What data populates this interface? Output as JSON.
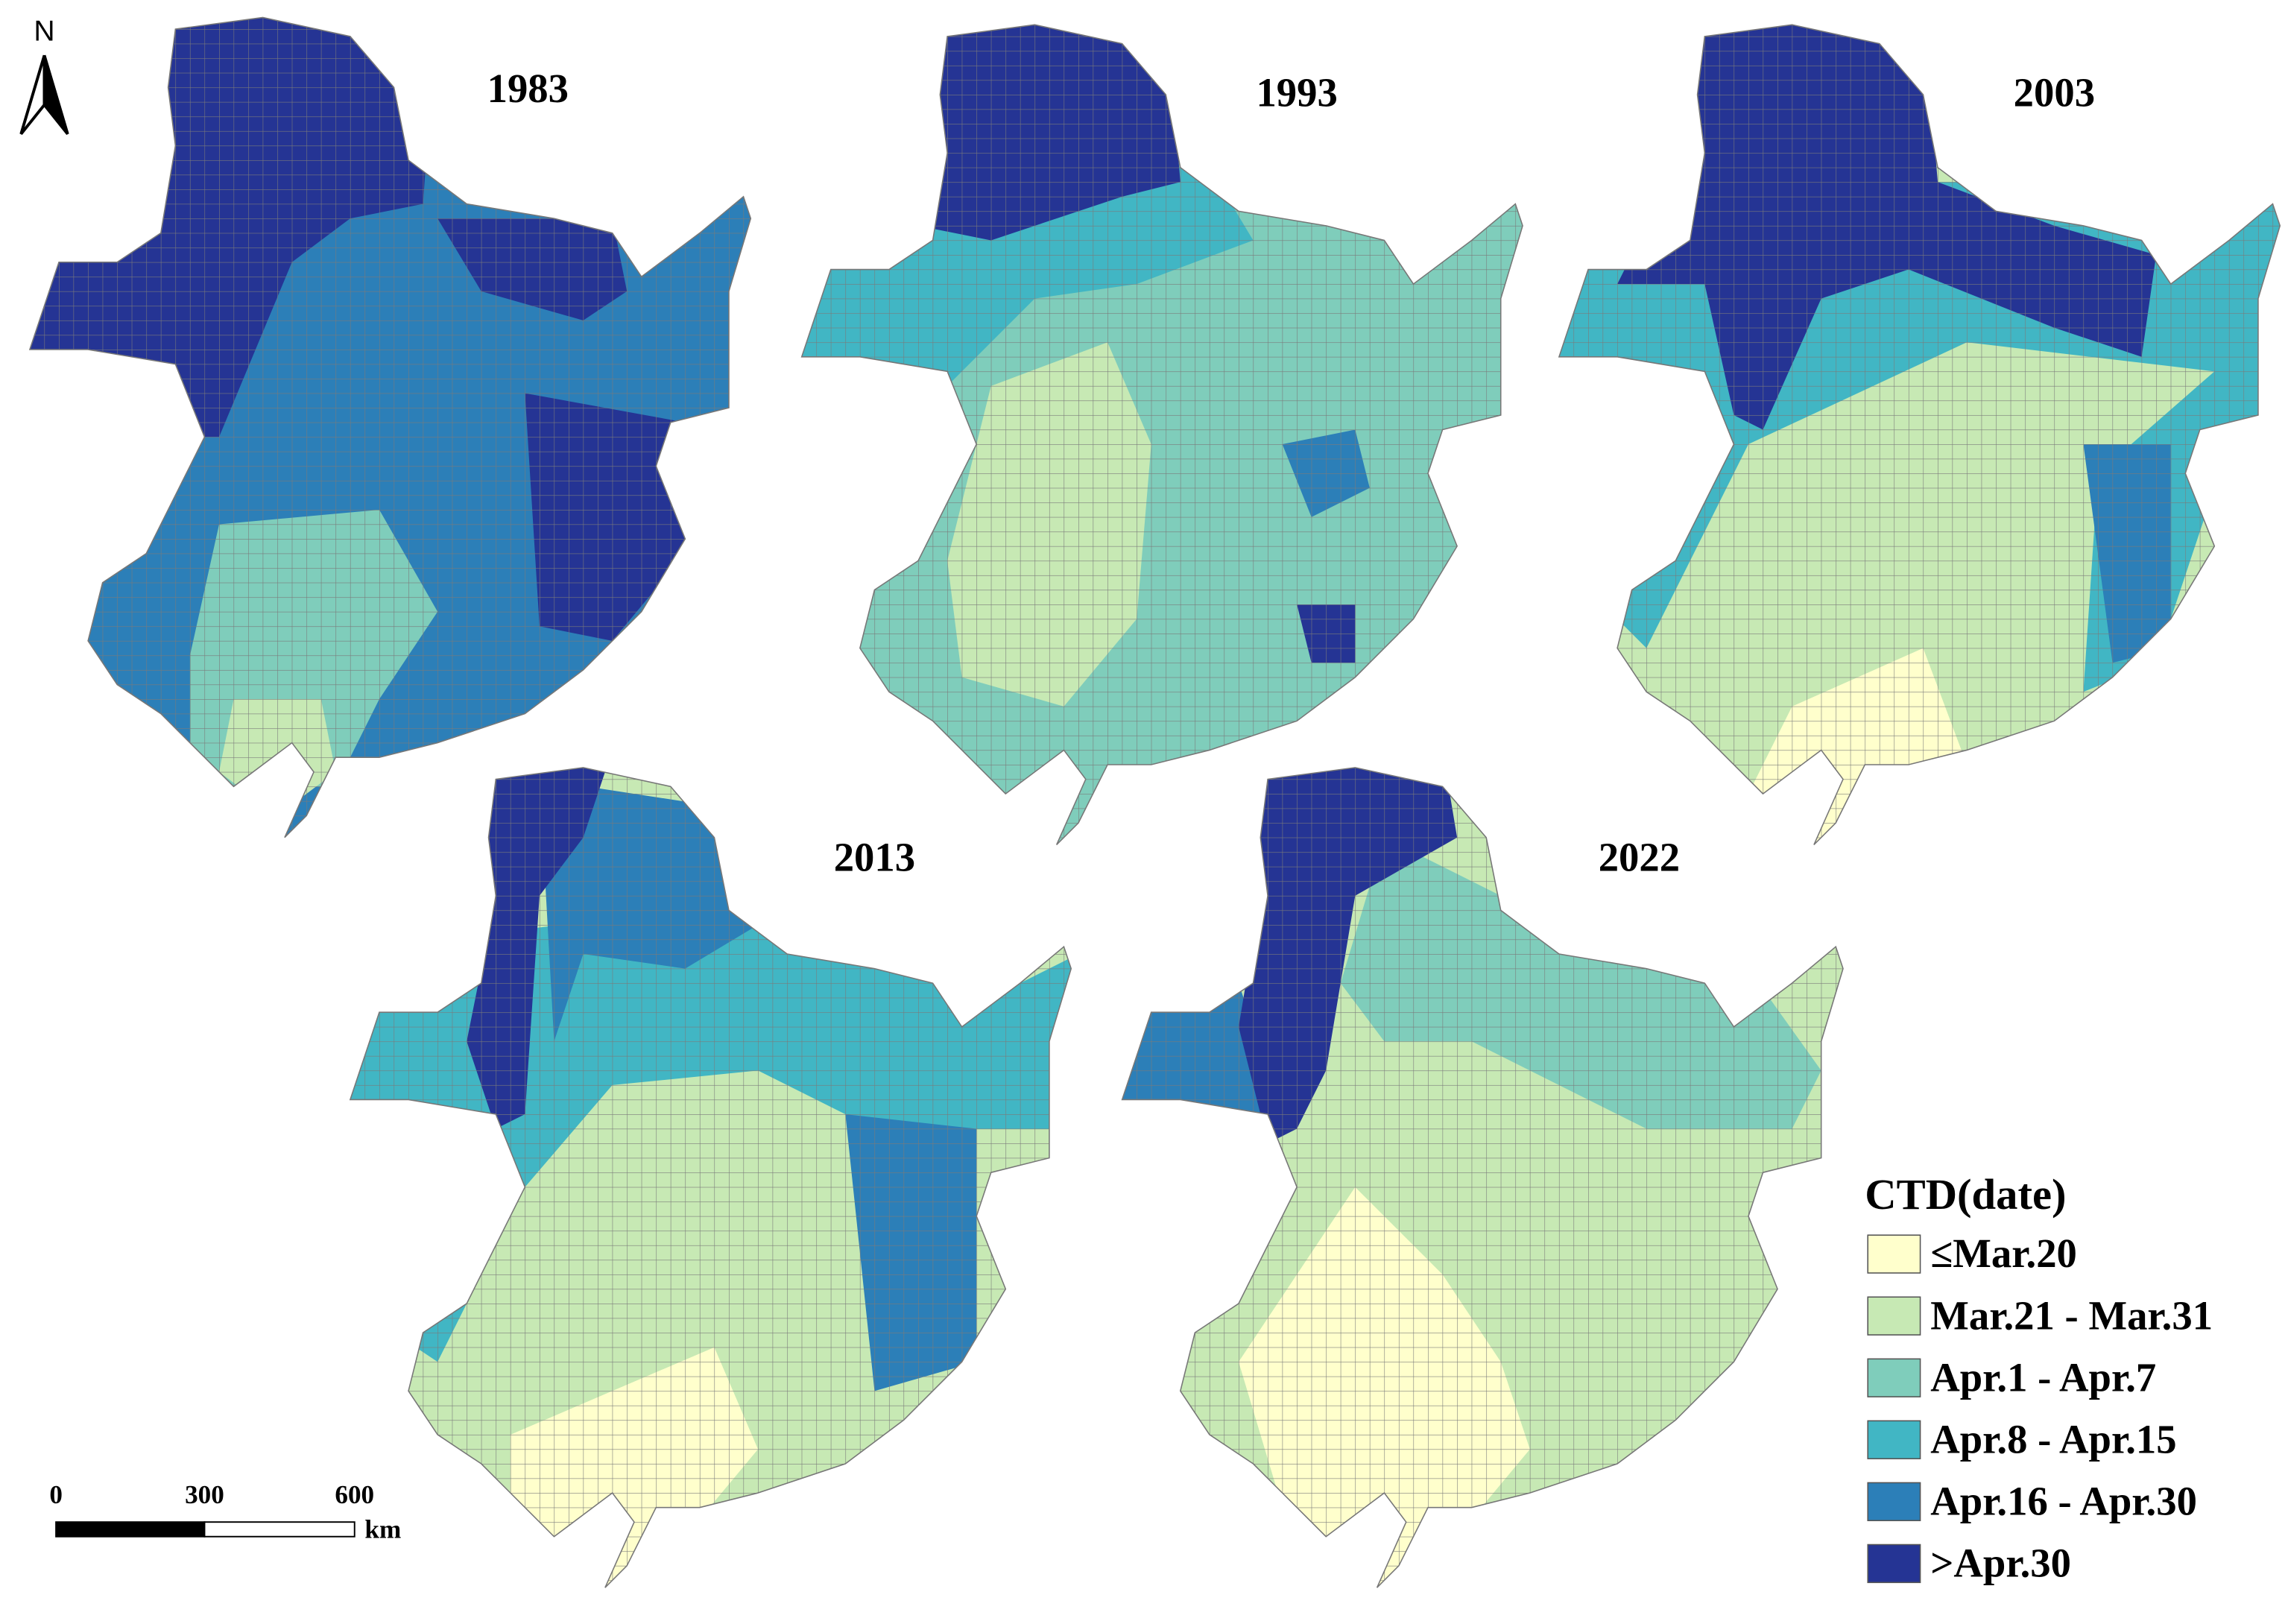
{
  "north": "N",
  "panels": [
    {
      "year": "1983"
    },
    {
      "year": "1993"
    },
    {
      "year": "2003"
    },
    {
      "year": "2013"
    },
    {
      "year": "2022"
    }
  ],
  "scale_bar": {
    "labels": [
      "0",
      "300",
      "600"
    ],
    "unit": "km"
  },
  "legend": {
    "title": "CTD(date)",
    "items": [
      {
        "label": "≤Mar.20",
        "color": "#ffffcc"
      },
      {
        "label": "Mar.21 - Mar.31",
        "color": "#c7e9b4"
      },
      {
        "label": "Apr.1 - Apr.7",
        "color": "#7fcdbb"
      },
      {
        "label": "Apr.8 - Apr.15",
        "color": "#41b6c4"
      },
      {
        "label": "Apr.16 - Apr.30",
        "color": "#2c7fb8"
      },
      {
        "label": ">Apr.30",
        "color": "#253494"
      }
    ]
  }
}
